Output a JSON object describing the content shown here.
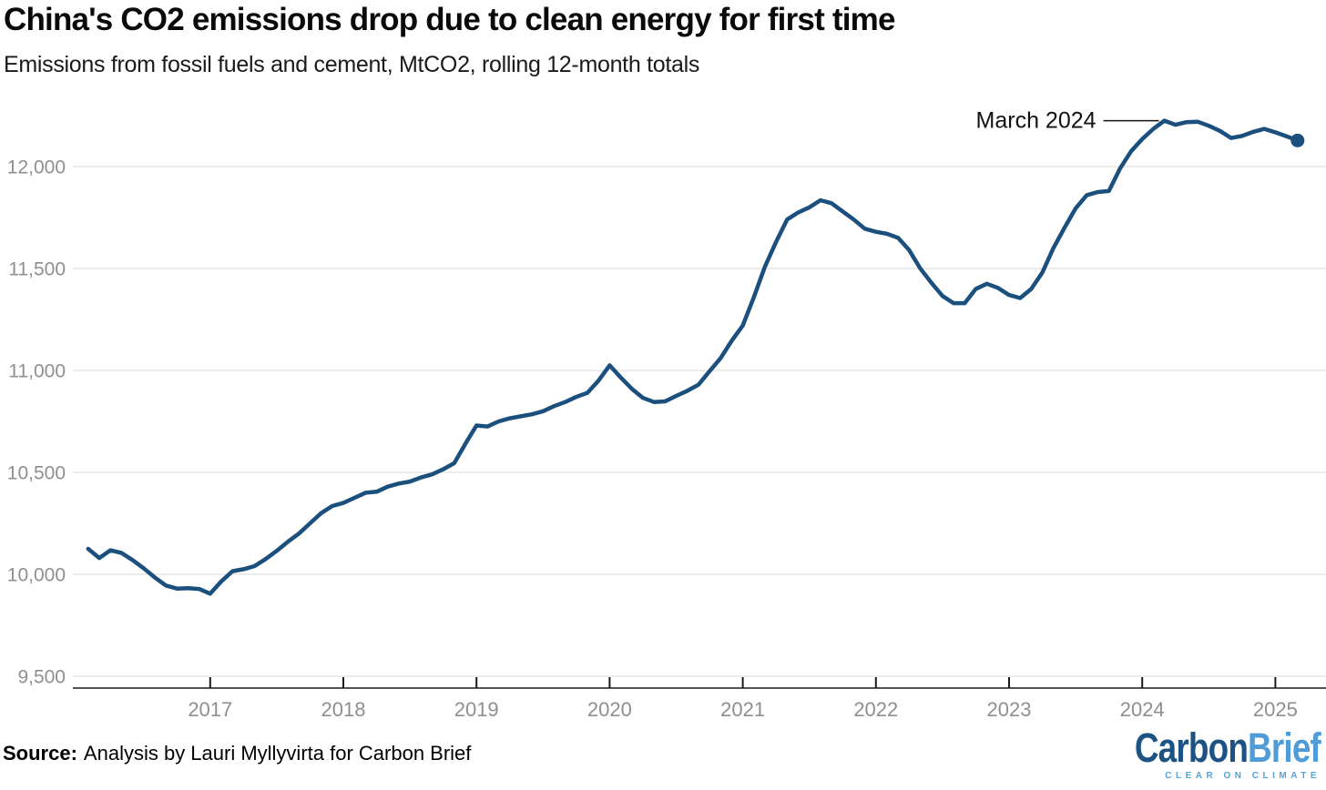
{
  "header": {
    "title": "China's CO2 emissions drop due to clean energy for first time",
    "subtitle": "Emissions from fossil fuels and cement, MtCO2, rolling 12-month totals"
  },
  "colors": {
    "line": "#1B4F7D",
    "grid": "#E6E6E6",
    "axis": "#1A1A1A",
    "tick_label": "#8F8F8F",
    "annotation": "#111111",
    "logo_dark_blue": "#1D5384",
    "logo_light_blue": "#4F9CD8"
  },
  "chart_data": {
    "type": "line",
    "title": "China's CO2 emissions drop due to clean energy for first time",
    "subtitle": "Emissions from fossil fuels and cement, MtCO2, rolling 12-month totals",
    "unit": "MtCO2",
    "series_name": "China CO2 emissions from fossil fuels and cement, rolling 12-month total",
    "grid": "horizontal-only",
    "legend": "none",
    "ylim": [
      9350,
      12350
    ],
    "xlim": [
      "2016-01",
      "2025-06"
    ],
    "y_axis": {
      "ticks": [
        {
          "label": "9,500",
          "value": 9500
        },
        {
          "label": "10,000",
          "value": 10000
        },
        {
          "label": "10,500",
          "value": 10500
        },
        {
          "label": "11,000",
          "value": 11000
        },
        {
          "label": "11,500",
          "value": 11500
        },
        {
          "label": "12,000",
          "value": 12000
        }
      ]
    },
    "x_axis": {
      "ticks": [
        {
          "label": "2017",
          "value": 2017
        },
        {
          "label": "2018",
          "value": 2018
        },
        {
          "label": "2019",
          "value": 2019
        },
        {
          "label": "2020",
          "value": 2020
        },
        {
          "label": "2021",
          "value": 2021
        },
        {
          "label": "2022",
          "value": 2022
        },
        {
          "label": "2023",
          "value": 2023
        },
        {
          "label": "2024",
          "value": 2024
        },
        {
          "label": "2025",
          "value": 2025
        }
      ]
    },
    "annotation": {
      "label": "March 2024",
      "month": "2024-03",
      "value": 12225
    },
    "end_dot_month": "2025-03",
    "months": [
      "2016-02",
      "2016-03",
      "2016-04",
      "2016-05",
      "2016-06",
      "2016-07",
      "2016-08",
      "2016-09",
      "2016-10",
      "2016-11",
      "2016-12",
      "2017-01",
      "2017-02",
      "2017-03",
      "2017-04",
      "2017-05",
      "2017-06",
      "2017-07",
      "2017-08",
      "2017-09",
      "2017-10",
      "2017-11",
      "2017-12",
      "2018-01",
      "2018-02",
      "2018-03",
      "2018-04",
      "2018-05",
      "2018-06",
      "2018-07",
      "2018-08",
      "2018-09",
      "2018-10",
      "2018-11",
      "2018-12",
      "2019-01",
      "2019-02",
      "2019-03",
      "2019-04",
      "2019-05",
      "2019-06",
      "2019-07",
      "2019-08",
      "2019-09",
      "2019-10",
      "2019-11",
      "2019-12",
      "2020-01",
      "2020-02",
      "2020-03",
      "2020-04",
      "2020-05",
      "2020-06",
      "2020-07",
      "2020-08",
      "2020-09",
      "2020-10",
      "2020-11",
      "2020-12",
      "2021-01",
      "2021-02",
      "2021-03",
      "2021-04",
      "2021-05",
      "2021-06",
      "2021-07",
      "2021-08",
      "2021-09",
      "2021-10",
      "2021-11",
      "2021-12",
      "2022-01",
      "2022-02",
      "2022-03",
      "2022-04",
      "2022-05",
      "2022-06",
      "2022-07",
      "2022-08",
      "2022-09",
      "2022-10",
      "2022-11",
      "2022-12",
      "2023-01",
      "2023-02",
      "2023-03",
      "2023-04",
      "2023-05",
      "2023-06",
      "2023-07",
      "2023-08",
      "2023-09",
      "2023-10",
      "2023-11",
      "2023-12",
      "2024-01",
      "2024-02",
      "2024-03",
      "2024-04",
      "2024-05",
      "2024-06",
      "2024-07",
      "2024-08",
      "2024-09",
      "2024-10",
      "2024-11",
      "2024-12",
      "2025-01",
      "2025-02",
      "2025-03"
    ],
    "values": [
      10125,
      10080,
      10118,
      10105,
      10070,
      10030,
      9985,
      9945,
      9930,
      9932,
      9928,
      9905,
      9965,
      10015,
      10025,
      10040,
      10075,
      10115,
      10160,
      10200,
      10250,
      10300,
      10335,
      10350,
      10375,
      10400,
      10405,
      10430,
      10445,
      10455,
      10475,
      10490,
      10515,
      10545,
      10640,
      10730,
      10725,
      10750,
      10765,
      10775,
      10785,
      10800,
      10825,
      10845,
      10870,
      10890,
      10950,
      11025,
      10965,
      10910,
      10865,
      10845,
      10848,
      10875,
      10900,
      10930,
      10995,
      11060,
      11145,
      11220,
      11360,
      11510,
      11630,
      11740,
      11775,
      11800,
      11835,
      11820,
      11780,
      11740,
      11695,
      11680,
      11670,
      11650,
      11590,
      11500,
      11430,
      11365,
      11330,
      11330,
      11400,
      11425,
      11405,
      11370,
      11355,
      11400,
      11480,
      11600,
      11700,
      11795,
      11860,
      11875,
      11880,
      11990,
      12075,
      12135,
      12185,
      12225,
      12205,
      12218,
      12220,
      12200,
      12175,
      12140,
      12150,
      12170,
      12185,
      12168,
      12148,
      12128
    ]
  },
  "footer": {
    "source_label": "Source:",
    "source_text": "Analysis by Lauri Myllyvirta for Carbon Brief",
    "logo": {
      "part1": "Carbon",
      "part2": "Brief",
      "tagline": "CLEAR ON CLIMATE"
    }
  }
}
